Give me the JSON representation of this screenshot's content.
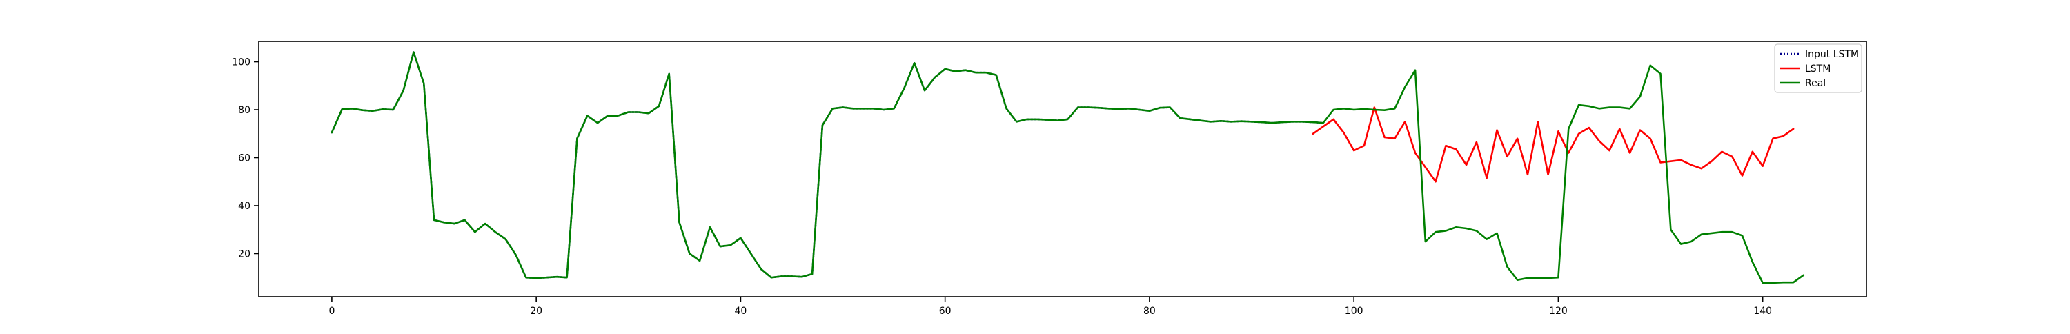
{
  "chart_data": {
    "type": "line",
    "title": "",
    "xlabel": "",
    "ylabel": "",
    "xlim": [
      -7.15,
      150.15
    ],
    "ylim": [
      2,
      108.5
    ],
    "x_ticks": [
      0,
      20,
      40,
      60,
      80,
      100,
      120,
      140
    ],
    "x_tick_labels": [
      "0",
      "20",
      "40",
      "60",
      "80",
      "100",
      "120",
      "140"
    ],
    "y_ticks": [
      20,
      40,
      60,
      80,
      100
    ],
    "y_tick_labels": [
      "20",
      "40",
      "60",
      "80",
      "100"
    ],
    "grid": false,
    "legend": {
      "placement": "upper-right",
      "entries": [
        "Input LSTM",
        "LSTM",
        "Real"
      ]
    },
    "series": [
      {
        "name": "Input LSTM",
        "color": "#00008b",
        "style": "dotted",
        "x_start": 0,
        "values": [
          70.5,
          80.2,
          80.5,
          79.8,
          79.5,
          80.2,
          80.0,
          88.0,
          104.0,
          91.0,
          34.0,
          33.0,
          32.5,
          34.0,
          29.0,
          32.5,
          29.0,
          26.0,
          19.5,
          10.0,
          9.8,
          10.0,
          10.3,
          10.0,
          68.0,
          77.5,
          74.5,
          77.5,
          77.5,
          79.0,
          79.0,
          78.5,
          81.5,
          95.0,
          33.0,
          20.0,
          17.0,
          31.0,
          23.0,
          23.5,
          26.5,
          20.0,
          13.5,
          10.0,
          10.5,
          10.5,
          10.3,
          11.5,
          73.5,
          80.5,
          81.0,
          80.5,
          80.5,
          80.5,
          80.0,
          80.5,
          89.0,
          99.5,
          88.0,
          93.5,
          97.0,
          96.0,
          96.5,
          95.5,
          95.5,
          94.5,
          80.5,
          75.0,
          76.0,
          76.0,
          75.8,
          75.5,
          76.0,
          81.0,
          81.0,
          80.8,
          80.5,
          80.3,
          80.5,
          80.0,
          79.5,
          80.8,
          81.0,
          76.5,
          76.0,
          75.5,
          75.0,
          75.3,
          75.0,
          75.2,
          75.0,
          74.8,
          74.5,
          74.8,
          75.0,
          75.0,
          74.8,
          74.5
        ]
      },
      {
        "name": "LSTM",
        "color": "#ff0000",
        "style": "solid",
        "x_start": 96,
        "values": [
          70.0,
          73.0,
          76.0,
          70.5,
          63.0,
          65.0,
          81.0,
          68.5,
          68.0,
          75.0,
          62.0,
          56.0,
          50.0,
          65.0,
          63.5,
          57.0,
          66.5,
          51.5,
          71.5,
          60.5,
          68.0,
          53.0,
          75.0,
          53.0,
          71.0,
          62.0,
          70.0,
          72.5,
          67.0,
          63.0,
          72.0,
          62.0,
          71.5,
          68.0,
          58.0,
          58.5,
          59.0,
          57.0,
          55.5,
          58.5,
          62.5,
          60.5,
          52.5,
          62.5,
          56.5,
          68.0,
          69.0,
          72.0
        ]
      },
      {
        "name": "Real",
        "color": "#008000",
        "style": "solid",
        "x_start": 0,
        "values": [
          70.5,
          80.2,
          80.5,
          79.8,
          79.5,
          80.2,
          80.0,
          88.0,
          104.0,
          91.0,
          34.0,
          33.0,
          32.5,
          34.0,
          29.0,
          32.5,
          29.0,
          26.0,
          19.5,
          10.0,
          9.8,
          10.0,
          10.3,
          10.0,
          68.0,
          77.5,
          74.5,
          77.5,
          77.5,
          79.0,
          79.0,
          78.5,
          81.5,
          95.0,
          33.0,
          20.0,
          17.0,
          31.0,
          23.0,
          23.5,
          26.5,
          20.0,
          13.5,
          10.0,
          10.5,
          10.5,
          10.3,
          11.5,
          73.5,
          80.5,
          81.0,
          80.5,
          80.5,
          80.5,
          80.0,
          80.5,
          89.0,
          99.5,
          88.0,
          93.5,
          97.0,
          96.0,
          96.5,
          95.5,
          95.5,
          94.5,
          80.5,
          75.0,
          76.0,
          76.0,
          75.8,
          75.5,
          76.0,
          81.0,
          81.0,
          80.8,
          80.5,
          80.3,
          80.5,
          80.0,
          79.5,
          80.8,
          81.0,
          76.5,
          76.0,
          75.5,
          75.0,
          75.3,
          75.0,
          75.2,
          75.0,
          74.8,
          74.5,
          74.8,
          75.0,
          75.0,
          74.8,
          74.5,
          80.0,
          80.5,
          80.0,
          80.3,
          80.0,
          79.8,
          80.5,
          89.5,
          96.5,
          25.0,
          29.0,
          29.5,
          31.0,
          30.5,
          29.5,
          26.0,
          28.5,
          14.5,
          9.0,
          9.8,
          9.8,
          9.8,
          10.0,
          72.0,
          82.0,
          81.5,
          80.5,
          81.0,
          81.0,
          80.5,
          85.5,
          98.5,
          95.0,
          30.0,
          24.0,
          25.0,
          28.0,
          28.5,
          29.0,
          29.0,
          27.5,
          16.5,
          7.8,
          7.8,
          8.0,
          8.0,
          11.0
        ]
      }
    ]
  }
}
